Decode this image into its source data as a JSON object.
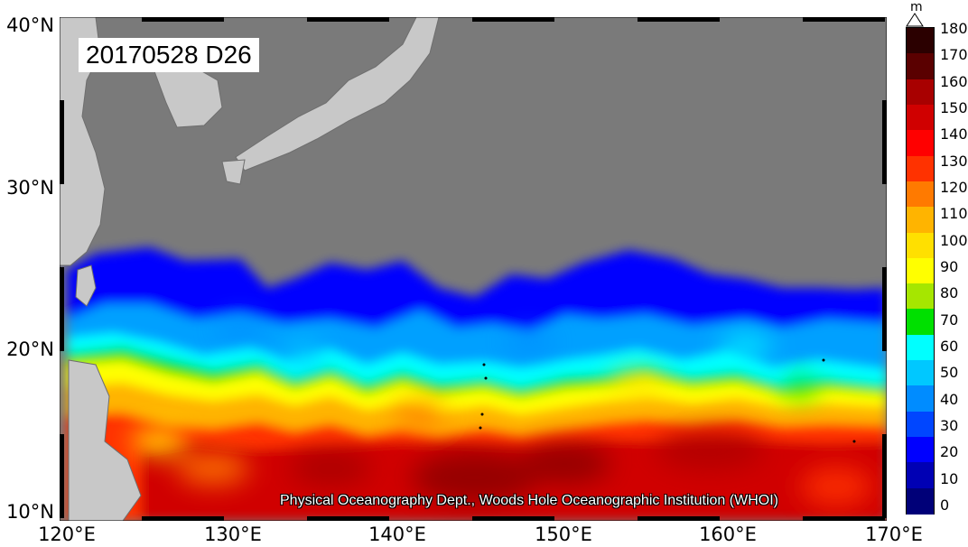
{
  "stamp": "20170528 D26",
  "credit": "Physical Oceanography Dept., Woods Hole Oceanographic Institution (WHOI)",
  "axes": {
    "lat_labels": [
      "40°N",
      "30°N",
      "20°N",
      "10°N"
    ],
    "lon_labels": [
      "120°E",
      "130°E",
      "140°E",
      "150°E",
      "160°E",
      "170°E"
    ],
    "lat_range": [
      10,
      40
    ],
    "lon_range": [
      120,
      170
    ]
  },
  "colorbar": {
    "unit": "m",
    "ticks": [
      "180",
      "170",
      "160",
      "150",
      "140",
      "130",
      "120",
      "110",
      "100",
      "90",
      "80",
      "70",
      "60",
      "50",
      "40",
      "30",
      "20",
      "10",
      "0"
    ],
    "colors": [
      "#2b0000",
      "#5a0000",
      "#a80000",
      "#d00000",
      "#ff0000",
      "#ff3200",
      "#ff7a00",
      "#ffb400",
      "#ffe000",
      "#ffff00",
      "#a6e600",
      "#00e000",
      "#00ffff",
      "#00c8ff",
      "#008cff",
      "#0046ff",
      "#0000ff",
      "#0000b4",
      "#000078"
    ],
    "range": [
      0,
      180
    ]
  },
  "map": {
    "land_color": "#c8c8c8",
    "masked_color": "#7a7a7a",
    "variable": "D26 depth"
  }
}
